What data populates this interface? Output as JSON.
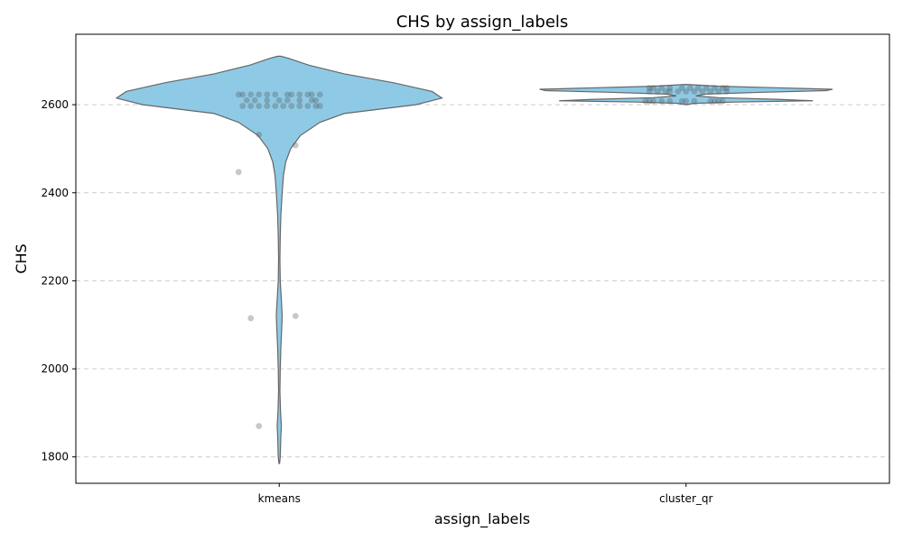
{
  "chart_data": {
    "type": "violin",
    "title": "CHS by assign_labels",
    "xlabel": "assign_labels",
    "ylabel": "CHS",
    "categories": [
      "kmeans",
      "cluster_qr"
    ],
    "ylim": [
      1740,
      2760
    ],
    "yticks": [
      1800,
      2000,
      2200,
      2400,
      2600
    ],
    "grid": "y",
    "colors": {
      "violin_fill": "#8ecae6",
      "violin_edge": "#666666",
      "point": "#555555"
    },
    "violins": [
      {
        "category": "kmeans",
        "range": [
          1785,
          2710
        ],
        "profile": [
          [
            1785,
            0.002
          ],
          [
            1800,
            0.006
          ],
          [
            1850,
            0.01
          ],
          [
            1870,
            0.013
          ],
          [
            1900,
            0.008
          ],
          [
            1950,
            0.004
          ],
          [
            2000,
            0.006
          ],
          [
            2050,
            0.01
          ],
          [
            2100,
            0.016
          ],
          [
            2120,
            0.018
          ],
          [
            2150,
            0.014
          ],
          [
            2200,
            0.006
          ],
          [
            2250,
            0.004
          ],
          [
            2300,
            0.006
          ],
          [
            2350,
            0.01
          ],
          [
            2400,
            0.018
          ],
          [
            2440,
            0.026
          ],
          [
            2470,
            0.04
          ],
          [
            2500,
            0.07
          ],
          [
            2530,
            0.13
          ],
          [
            2560,
            0.25
          ],
          [
            2580,
            0.4
          ],
          [
            2600,
            0.84
          ],
          [
            2615,
            1.0
          ],
          [
            2630,
            0.94
          ],
          [
            2650,
            0.7
          ],
          [
            2670,
            0.4
          ],
          [
            2690,
            0.18
          ],
          [
            2705,
            0.06
          ],
          [
            2710,
            0.01
          ]
        ],
        "points": [
          [
            -0.05,
            1870
          ],
          [
            -0.07,
            2115
          ],
          [
            0.04,
            2120
          ],
          [
            -0.1,
            2447
          ],
          [
            -0.05,
            2532
          ],
          [
            0.04,
            2508
          ],
          [
            -0.09,
            2597
          ],
          [
            -0.07,
            2597
          ],
          [
            -0.05,
            2597
          ],
          [
            -0.03,
            2597
          ],
          [
            -0.01,
            2597
          ],
          [
            0.01,
            2597
          ],
          [
            0.03,
            2597
          ],
          [
            0.05,
            2597
          ],
          [
            0.07,
            2597
          ],
          [
            0.09,
            2597
          ],
          [
            0.1,
            2597
          ],
          [
            -0.08,
            2610
          ],
          [
            -0.06,
            2610
          ],
          [
            -0.03,
            2610
          ],
          [
            0.0,
            2610
          ],
          [
            0.02,
            2610
          ],
          [
            0.05,
            2610
          ],
          [
            0.08,
            2610
          ],
          [
            0.09,
            2610
          ],
          [
            -0.1,
            2623
          ],
          [
            -0.09,
            2623
          ],
          [
            -0.07,
            2623
          ],
          [
            -0.05,
            2623
          ],
          [
            -0.03,
            2623
          ],
          [
            -0.01,
            2623
          ],
          [
            0.02,
            2623
          ],
          [
            0.03,
            2623
          ],
          [
            0.05,
            2623
          ],
          [
            0.07,
            2623
          ],
          [
            0.08,
            2623
          ],
          [
            0.1,
            2623
          ]
        ]
      },
      {
        "category": "cluster_qr",
        "range": [
          2600,
          2646
        ],
        "profile": [
          [
            2600,
            0.0
          ],
          [
            2603,
            0.05
          ],
          [
            2606,
            0.3
          ],
          [
            2609,
            0.78
          ],
          [
            2612,
            0.58
          ],
          [
            2616,
            0.2
          ],
          [
            2620,
            0.06
          ],
          [
            2624,
            0.12
          ],
          [
            2628,
            0.45
          ],
          [
            2632,
            0.86
          ],
          [
            2635,
            0.9
          ],
          [
            2638,
            0.6
          ],
          [
            2642,
            0.2
          ],
          [
            2646,
            0.0
          ]
        ],
        "points": [
          [
            -0.1,
            2608
          ],
          [
            -0.09,
            2608
          ],
          [
            -0.08,
            2608
          ],
          [
            -0.06,
            2608
          ],
          [
            -0.04,
            2608
          ],
          [
            -0.01,
            2608
          ],
          [
            0.0,
            2608
          ],
          [
            0.02,
            2608
          ],
          [
            0.06,
            2608
          ],
          [
            0.07,
            2608
          ],
          [
            0.08,
            2608
          ],
          [
            0.09,
            2608
          ],
          [
            -0.09,
            2630
          ],
          [
            -0.07,
            2630
          ],
          [
            -0.05,
            2630
          ],
          [
            -0.04,
            2630
          ],
          [
            -0.02,
            2630
          ],
          [
            0.0,
            2630
          ],
          [
            0.02,
            2630
          ],
          [
            0.04,
            2630
          ],
          [
            0.06,
            2630
          ],
          [
            0.08,
            2630
          ],
          [
            0.1,
            2630
          ],
          [
            -0.09,
            2638
          ],
          [
            -0.08,
            2638
          ],
          [
            -0.06,
            2638
          ],
          [
            -0.04,
            2638
          ],
          [
            -0.01,
            2638
          ],
          [
            0.01,
            2638
          ],
          [
            0.03,
            2638
          ],
          [
            0.05,
            2638
          ],
          [
            0.07,
            2638
          ],
          [
            0.09,
            2638
          ],
          [
            0.1,
            2638
          ]
        ]
      }
    ]
  }
}
